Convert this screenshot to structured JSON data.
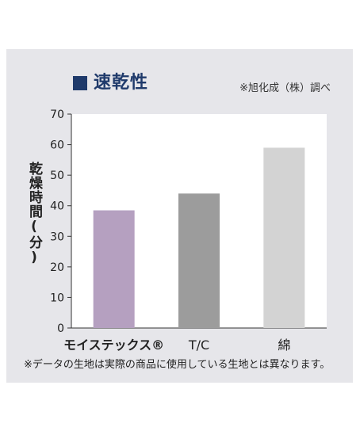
{
  "title": "速乾性",
  "source_note": "※旭化成（株）調べ",
  "footnote": "※データの生地は実際の商品に使用している生地とは異なります。",
  "colors": {
    "panel_bg": "#e6e6ea",
    "title_square": "#1f3a6b",
    "title_text": "#1f3a6b",
    "plot_bg": "#ffffff"
  },
  "chart_data": {
    "type": "bar",
    "title": "速乾性",
    "ylabel": "乾燥時間(分)",
    "xlabel": "",
    "categories": [
      "モイステックス®",
      "T/C",
      "綿"
    ],
    "values": [
      38.5,
      44,
      59
    ],
    "bar_colors": [
      "#b5a0c0",
      "#9c9c9c",
      "#d3d3d3"
    ],
    "ylim": [
      0,
      70
    ],
    "yticks": [
      0,
      10,
      20,
      30,
      40,
      50,
      60,
      70
    ],
    "grid": false,
    "legend": "none"
  }
}
